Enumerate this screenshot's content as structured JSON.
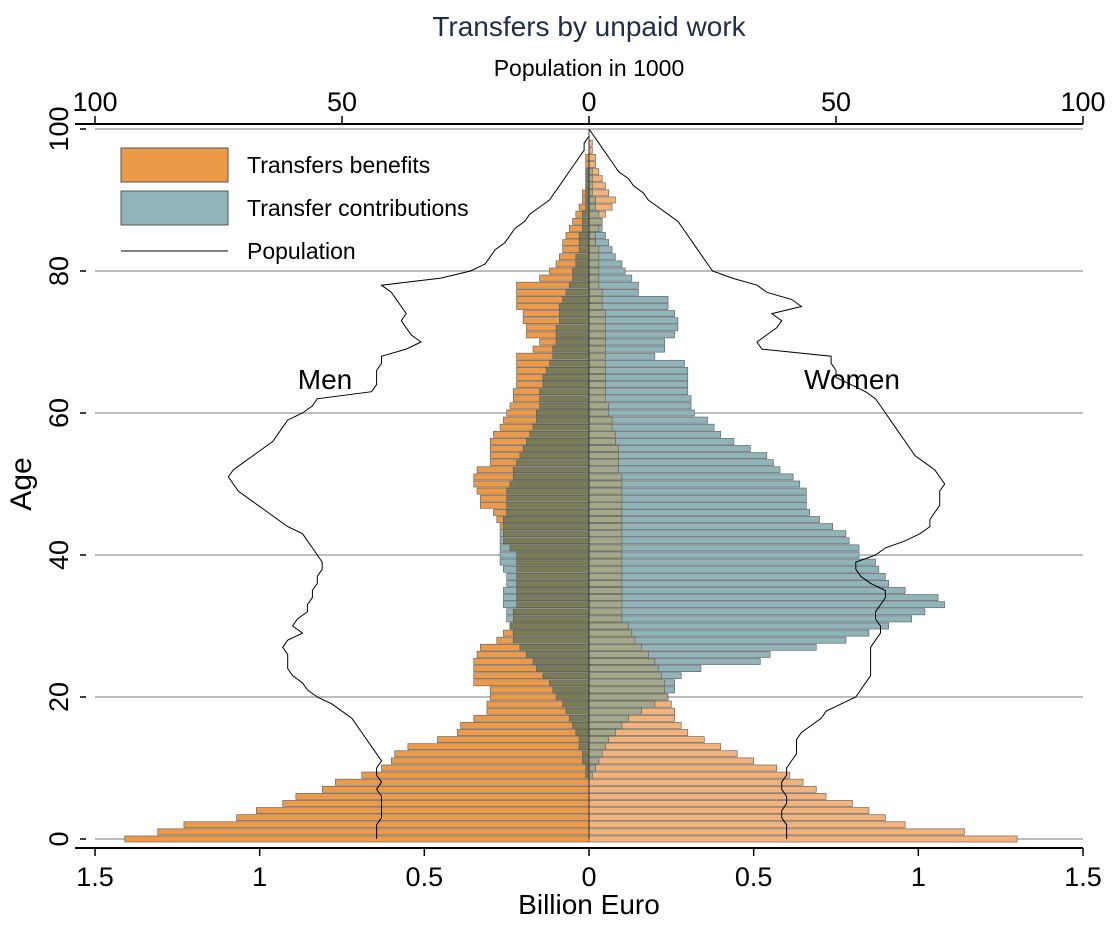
{
  "chart_data": {
    "type": "bar",
    "orientation": "horizontal",
    "title": "Transfers by unpaid work",
    "top_axis_label": "Population in 1000",
    "xlabel": "Billion Euro",
    "ylabel": "Age",
    "x_ticks": [
      "1.5",
      "1",
      "0.5",
      "0",
      "0.5",
      "1",
      "1.5"
    ],
    "x_tick_values": [
      -1.5,
      -1,
      -0.5,
      0,
      0.5,
      1,
      1.5
    ],
    "top_ticks": [
      "100",
      "50",
      "0",
      "50",
      "100"
    ],
    "top_tick_values": [
      -100,
      -50,
      0,
      50,
      100
    ],
    "y_ticks": [
      "0",
      "20",
      "40",
      "60",
      "80",
      "100"
    ],
    "y_tick_values": [
      0,
      20,
      40,
      60,
      80,
      100
    ],
    "xlim": [
      -1.5,
      1.5
    ],
    "ylim": [
      0,
      100
    ],
    "top_xlim": [
      -100,
      100
    ],
    "grid": true,
    "legend_position": "top-left",
    "legend": [
      "Transfers benefits",
      "Transfer contributions",
      "Population"
    ],
    "annotations": {
      "left": "Men",
      "right": "Women"
    },
    "colors": {
      "benefits_men": "#ec9a48",
      "benefits_women": "#f2b279",
      "contributions": "#8fb4ba",
      "overlap_men": "#7a7b59",
      "overlap_women": "#a3a888",
      "grid": "#bdbdbd",
      "title": "#1f2d4b",
      "line": "#000000",
      "bar_edge": "#5a5a5a"
    },
    "ages": [
      0,
      1,
      2,
      3,
      4,
      5,
      6,
      7,
      8,
      9,
      10,
      11,
      12,
      13,
      14,
      15,
      16,
      17,
      18,
      19,
      20,
      21,
      22,
      23,
      24,
      25,
      26,
      27,
      28,
      29,
      30,
      31,
      32,
      33,
      34,
      35,
      36,
      37,
      38,
      39,
      40,
      41,
      42,
      43,
      44,
      45,
      46,
      47,
      48,
      49,
      50,
      51,
      52,
      53,
      54,
      55,
      56,
      57,
      58,
      59,
      60,
      61,
      62,
      63,
      64,
      65,
      66,
      67,
      68,
      69,
      70,
      71,
      72,
      73,
      74,
      75,
      76,
      77,
      78,
      79,
      80,
      81,
      82,
      83,
      84,
      85,
      86,
      87,
      88,
      89,
      90,
      91,
      92,
      93,
      94,
      95,
      96,
      97,
      98,
      99,
      100
    ],
    "series": [
      {
        "name": "Transfers benefits",
        "group": "Men",
        "values": [
          1.41,
          1.31,
          1.23,
          1.07,
          1.01,
          0.93,
          0.89,
          0.81,
          0.77,
          0.69,
          0.63,
          0.6,
          0.59,
          0.55,
          0.46,
          0.4,
          0.39,
          0.35,
          0.31,
          0.31,
          0.3,
          0.3,
          0.35,
          0.35,
          0.35,
          0.35,
          0.34,
          0.33,
          0.28,
          0.26,
          0.24,
          0.23,
          0.23,
          0.22,
          0.22,
          0.22,
          0.22,
          0.22,
          0.22,
          0.22,
          0.22,
          0.24,
          0.26,
          0.26,
          0.27,
          0.28,
          0.29,
          0.33,
          0.33,
          0.34,
          0.35,
          0.35,
          0.34,
          0.3,
          0.3,
          0.3,
          0.3,
          0.29,
          0.27,
          0.26,
          0.25,
          0.24,
          0.23,
          0.23,
          0.22,
          0.22,
          0.22,
          0.22,
          0.22,
          0.17,
          0.15,
          0.19,
          0.19,
          0.2,
          0.2,
          0.22,
          0.22,
          0.22,
          0.22,
          0.15,
          0.12,
          0.1,
          0.09,
          0.08,
          0.08,
          0.07,
          0.06,
          0.05,
          0.04,
          0.03,
          0.02,
          0.02,
          0.01,
          0.01,
          0.01,
          0.01,
          0.01,
          0.0,
          0.0,
          0.0,
          0.0
        ]
      },
      {
        "name": "Transfer contributions",
        "group": "Men",
        "values": [
          0.0,
          0.0,
          0.0,
          0.0,
          0.0,
          0.0,
          0.0,
          0.0,
          0.0,
          0.01,
          0.01,
          0.02,
          0.02,
          0.03,
          0.03,
          0.04,
          0.05,
          0.06,
          0.07,
          0.08,
          0.1,
          0.11,
          0.12,
          0.14,
          0.16,
          0.17,
          0.19,
          0.21,
          0.23,
          0.23,
          0.24,
          0.25,
          0.25,
          0.26,
          0.26,
          0.26,
          0.25,
          0.25,
          0.26,
          0.27,
          0.27,
          0.27,
          0.27,
          0.27,
          0.26,
          0.26,
          0.25,
          0.25,
          0.25,
          0.25,
          0.24,
          0.23,
          0.23,
          0.22,
          0.21,
          0.2,
          0.19,
          0.18,
          0.17,
          0.16,
          0.16,
          0.15,
          0.15,
          0.15,
          0.14,
          0.14,
          0.13,
          0.12,
          0.11,
          0.11,
          0.1,
          0.1,
          0.1,
          0.09,
          0.09,
          0.09,
          0.08,
          0.07,
          0.06,
          0.05,
          0.05,
          0.04,
          0.04,
          0.03,
          0.03,
          0.03,
          0.02,
          0.02,
          0.02,
          0.01,
          0.01,
          0.01,
          0.01,
          0.01,
          0.01,
          0.0,
          0.0,
          0.0,
          0.0,
          0.0,
          0.0
        ]
      },
      {
        "name": "Transfers benefits",
        "group": "Women",
        "values": [
          1.3,
          1.14,
          0.96,
          0.9,
          0.85,
          0.8,
          0.72,
          0.69,
          0.65,
          0.61,
          0.57,
          0.5,
          0.45,
          0.4,
          0.35,
          0.3,
          0.28,
          0.26,
          0.26,
          0.25,
          0.24,
          0.23,
          0.23,
          0.22,
          0.21,
          0.2,
          0.18,
          0.16,
          0.14,
          0.13,
          0.12,
          0.1,
          0.1,
          0.1,
          0.1,
          0.1,
          0.1,
          0.1,
          0.1,
          0.1,
          0.1,
          0.1,
          0.1,
          0.1,
          0.1,
          0.1,
          0.1,
          0.1,
          0.1,
          0.1,
          0.1,
          0.1,
          0.09,
          0.09,
          0.09,
          0.09,
          0.08,
          0.08,
          0.07,
          0.07,
          0.06,
          0.06,
          0.05,
          0.05,
          0.05,
          0.05,
          0.05,
          0.05,
          0.05,
          0.05,
          0.05,
          0.05,
          0.05,
          0.05,
          0.05,
          0.04,
          0.04,
          0.04,
          0.03,
          0.03,
          0.03,
          0.03,
          0.03,
          0.03,
          0.02,
          0.02,
          0.03,
          0.04,
          0.05,
          0.07,
          0.08,
          0.06,
          0.05,
          0.04,
          0.03,
          0.02,
          0.02,
          0.01,
          0.01,
          0.0,
          0.0
        ]
      },
      {
        "name": "Transfer contributions",
        "group": "Women",
        "values": [
          0.0,
          0.0,
          0.0,
          0.0,
          0.0,
          0.0,
          0.0,
          0.0,
          0.0,
          0.01,
          0.02,
          0.03,
          0.04,
          0.05,
          0.06,
          0.08,
          0.1,
          0.12,
          0.16,
          0.2,
          0.24,
          0.26,
          0.26,
          0.28,
          0.34,
          0.52,
          0.55,
          0.69,
          0.78,
          0.85,
          0.91,
          0.98,
          1.02,
          1.08,
          1.06,
          0.96,
          0.91,
          0.9,
          0.88,
          0.87,
          0.82,
          0.82,
          0.79,
          0.78,
          0.74,
          0.7,
          0.67,
          0.66,
          0.66,
          0.66,
          0.64,
          0.62,
          0.58,
          0.56,
          0.54,
          0.49,
          0.44,
          0.4,
          0.38,
          0.36,
          0.32,
          0.31,
          0.31,
          0.3,
          0.3,
          0.3,
          0.3,
          0.29,
          0.2,
          0.23,
          0.23,
          0.26,
          0.27,
          0.27,
          0.26,
          0.24,
          0.24,
          0.15,
          0.15,
          0.13,
          0.11,
          0.1,
          0.08,
          0.07,
          0.06,
          0.05,
          0.04,
          0.04,
          0.03,
          0.02,
          0.02,
          0.01,
          0.01,
          0.01,
          0.01,
          0.0,
          0.0,
          0.0,
          0.0,
          0.0,
          0.0
        ]
      },
      {
        "name": "Population",
        "group": "Men",
        "values": [
          43,
          43,
          43,
          42,
          42,
          42,
          42,
          43,
          42,
          43,
          43,
          42,
          43,
          44,
          45,
          46,
          47,
          48,
          50,
          52,
          55,
          57,
          58,
          60,
          61,
          61,
          61,
          62,
          61,
          58,
          60,
          59,
          57,
          57,
          56,
          56,
          55,
          55,
          54,
          54,
          55,
          56,
          57,
          58,
          61,
          63,
          65,
          67,
          69,
          71,
          72,
          73,
          72,
          70,
          68,
          66,
          64,
          63,
          62,
          61,
          58,
          56,
          55,
          44,
          43,
          43,
          43,
          42,
          42,
          37,
          34,
          36,
          37,
          38,
          37,
          38,
          39,
          40,
          42,
          30,
          24,
          21,
          20,
          19,
          17,
          16,
          15,
          13,
          12,
          10,
          8,
          7,
          6,
          5,
          4,
          3,
          2,
          1,
          1,
          0,
          0
        ]
      },
      {
        "name": "Population",
        "group": "Women",
        "values": [
          40,
          40,
          40,
          39,
          39,
          40,
          40,
          39,
          39,
          40,
          40,
          41,
          42,
          42,
          42,
          43,
          45,
          47,
          48,
          51,
          54,
          55,
          56,
          57,
          57,
          57,
          57,
          57,
          58,
          59,
          59,
          58,
          58,
          59,
          60,
          60,
          57,
          55,
          54,
          54,
          58,
          60,
          64,
          67,
          69,
          69,
          70,
          71,
          71,
          71,
          72,
          71,
          70,
          68,
          66,
          65,
          64,
          63,
          62,
          61,
          60,
          59,
          58,
          56,
          53,
          50,
          50,
          49,
          49,
          35,
          34,
          36,
          38,
          39,
          37,
          43,
          41,
          36,
          34,
          29,
          25,
          24,
          23,
          22,
          21,
          20,
          19,
          18,
          16,
          14,
          12,
          11,
          9,
          8,
          6,
          5,
          4,
          3,
          2,
          1,
          0
        ]
      }
    ]
  }
}
